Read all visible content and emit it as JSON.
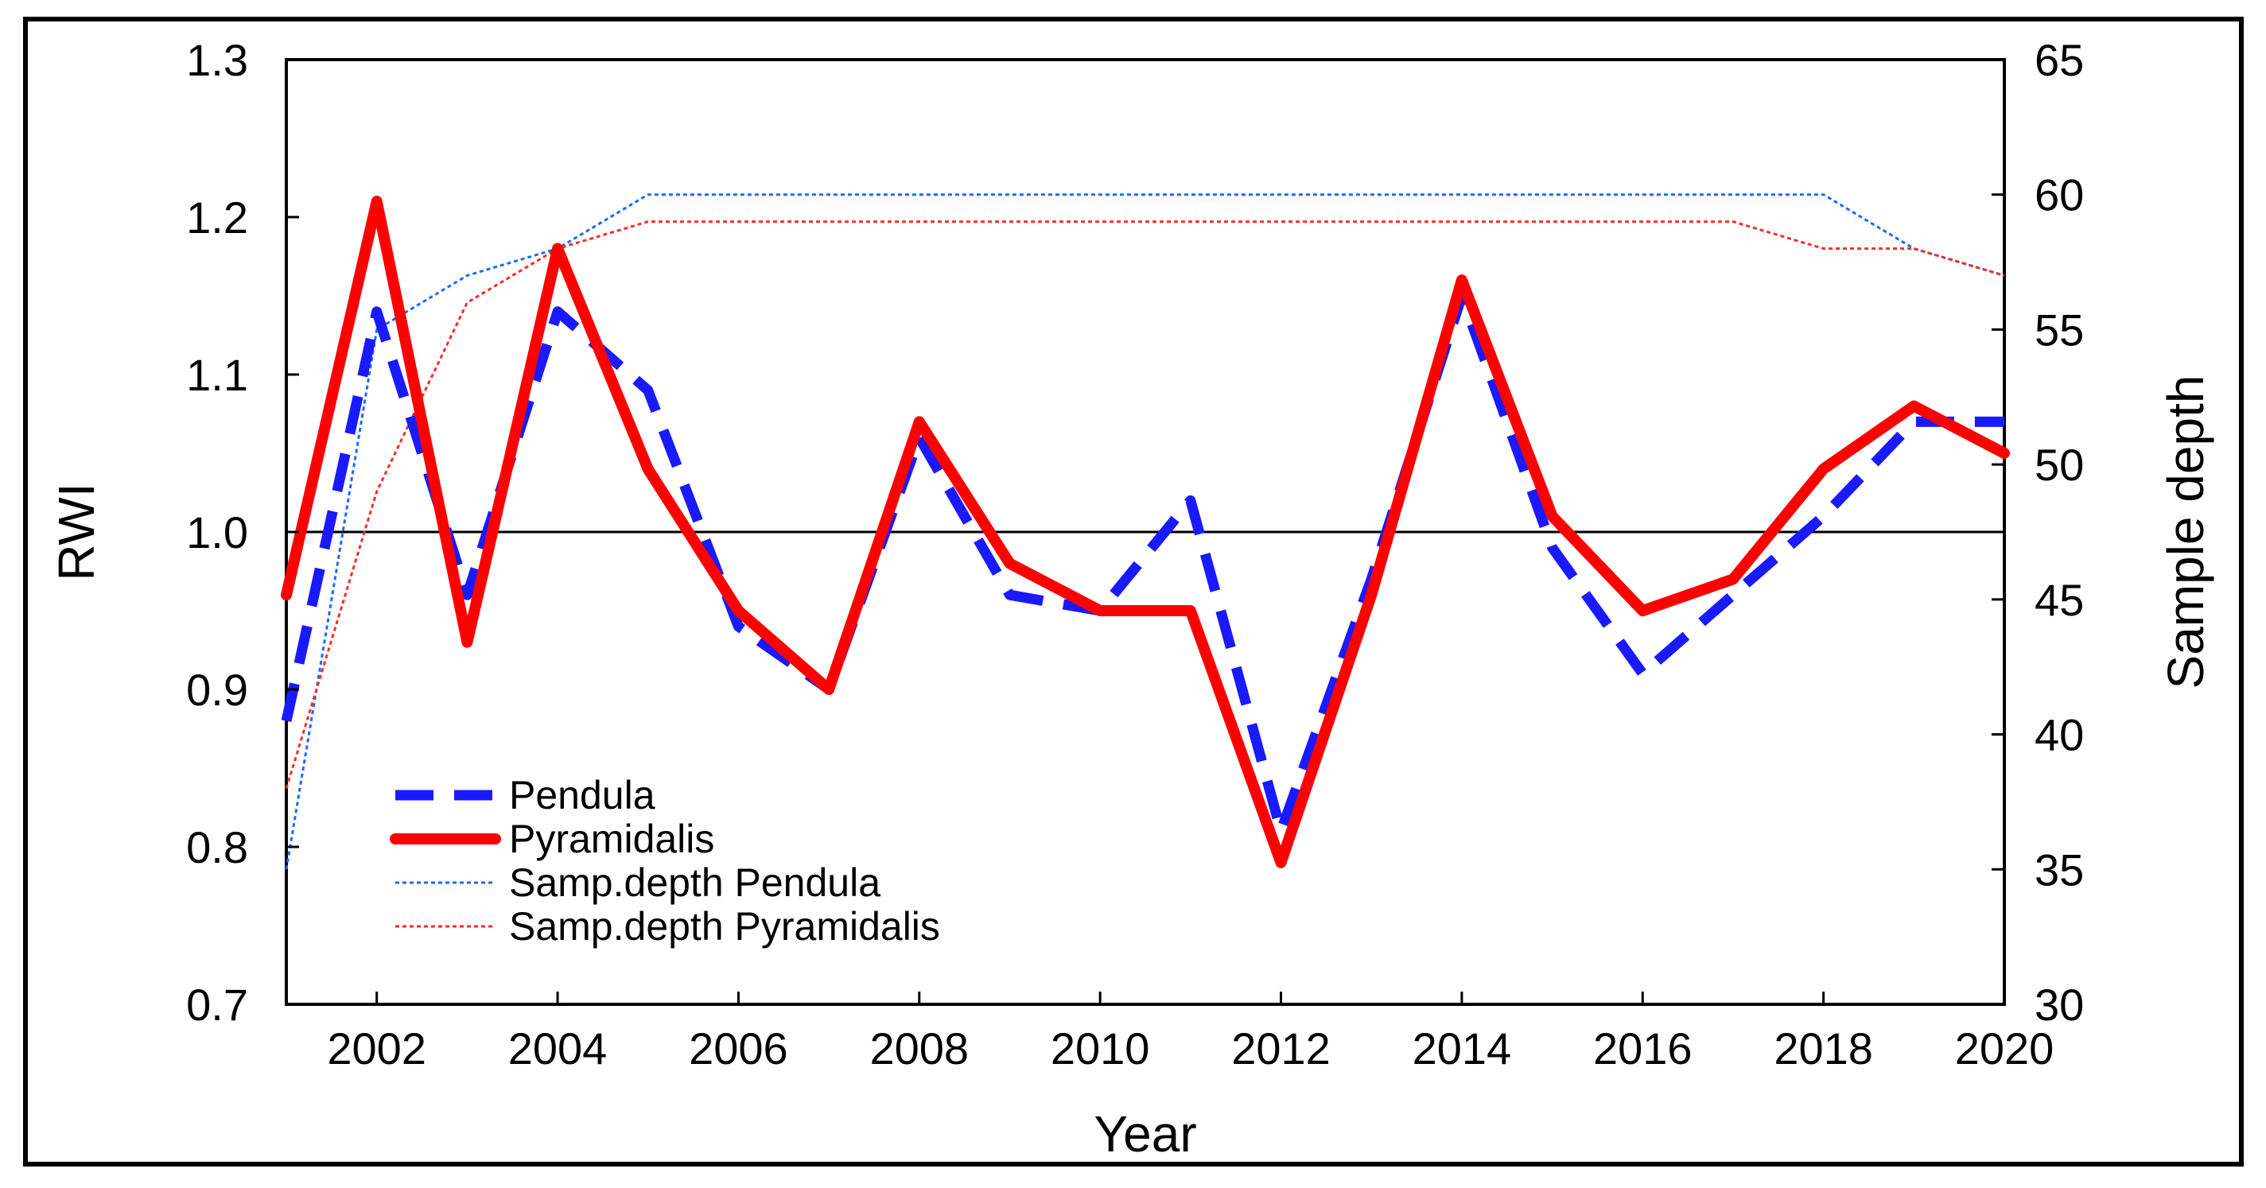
{
  "chart_data": {
    "type": "line",
    "title": "",
    "xlabel": "Year",
    "ylabel_left": "RWI",
    "ylabel_right": "Sample depth",
    "x": [
      2001,
      2002,
      2003,
      2004,
      2005,
      2006,
      2007,
      2008,
      2009,
      2010,
      2011,
      2012,
      2013,
      2014,
      2015,
      2016,
      2017,
      2018,
      2019,
      2020
    ],
    "xlim": [
      2001,
      2020
    ],
    "ylim_left": [
      0.7,
      1.3
    ],
    "ylim_right": [
      30,
      65
    ],
    "x_ticks": [
      "2002",
      "2004",
      "2006",
      "2008",
      "2010",
      "2012",
      "2014",
      "2016",
      "2018",
      "2020"
    ],
    "y_left_ticks": [
      "0.7",
      "0.8",
      "0.9",
      "1.0",
      "1.1",
      "1.2",
      "1.3"
    ],
    "y_right_ticks": [
      "30",
      "35",
      "40",
      "45",
      "50",
      "55",
      "60",
      "65"
    ],
    "reference_line": 1.0,
    "legend_position": "bottom-left",
    "series": [
      {
        "name": "Pendula",
        "axis": "left",
        "color": "#1a1aff",
        "style": "dashed-thick",
        "values": [
          0.88,
          1.14,
          0.96,
          1.14,
          1.09,
          0.94,
          0.9,
          1.06,
          0.96,
          0.95,
          1.02,
          0.81,
          0.97,
          1.15,
          0.99,
          0.91,
          0.96,
          1.01,
          1.07,
          1.07
        ]
      },
      {
        "name": "Pyramidalis",
        "axis": "left",
        "color": "#ff0000",
        "style": "solid-thick",
        "values": [
          0.96,
          1.21,
          0.93,
          1.18,
          1.04,
          0.95,
          0.9,
          1.07,
          0.98,
          0.95,
          0.95,
          0.79,
          0.96,
          1.16,
          1.01,
          0.95,
          0.97,
          1.04,
          1.08,
          1.05
        ]
      },
      {
        "name": "Samp.depth Pendula",
        "axis": "right",
        "color": "#1a6aff",
        "style": "dotted-thin",
        "values": [
          35,
          55,
          57,
          58,
          60,
          60,
          60,
          60,
          60,
          60,
          60,
          60,
          60,
          60,
          60,
          60,
          60,
          60,
          58,
          57
        ]
      },
      {
        "name": "Samp.depth Pyramidalis",
        "axis": "right",
        "color": "#ff2a2a",
        "style": "dotted-thin",
        "values": [
          38,
          49,
          56,
          58,
          59,
          59,
          59,
          59,
          59,
          59,
          59,
          59,
          59,
          59,
          59,
          59,
          59,
          58,
          58,
          57
        ]
      }
    ]
  }
}
